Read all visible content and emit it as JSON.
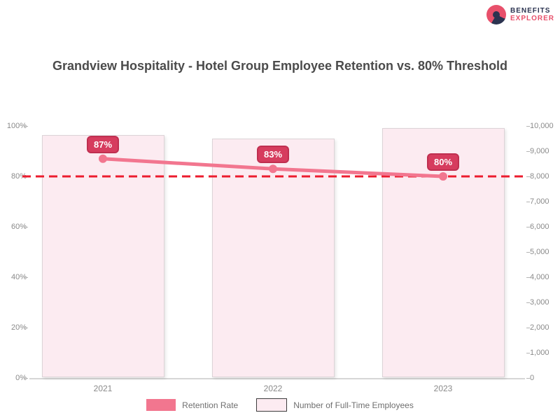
{
  "header": {
    "logo": {
      "line1": "BENEFITS",
      "line2": "EXPLORER"
    }
  },
  "title": "Grandview Hospitality - Hotel Group Employee Retention vs. 80% Threshold",
  "colors": {
    "line": "#f2768f",
    "marker": "#f2768f",
    "point_label_bg": "#d63c5e",
    "point_label_border": "#bf2f50",
    "bar_fill": "#fcebf1",
    "bar_border": "#dcd3d7",
    "threshold": "#ec1c2e",
    "logo_navy": "#2b3350",
    "logo_pink": "#e8506b",
    "axis_text": "#8a8a8a",
    "title_text": "#4b4b4b"
  },
  "chart_data": {
    "type": "bar",
    "subtype": "bar-line-combo",
    "title": "Grandview Hospitality - Hotel Group Employee Retention vs. 80% Threshold",
    "categories": [
      "2021",
      "2022",
      "2023"
    ],
    "series": [
      {
        "name": "Number of Full-Time Employees",
        "type": "bar",
        "axis": "right",
        "values": [
          9650,
          9500,
          9920
        ]
      },
      {
        "name": "Retention Rate",
        "type": "line",
        "axis": "left",
        "values": [
          87,
          83,
          80
        ],
        "point_labels": [
          "87%",
          "83%",
          "80%"
        ]
      }
    ],
    "threshold": {
      "value": 80,
      "style": "dashed",
      "color": "#ec1c2e"
    },
    "left_axis": {
      "ticks": [
        "100%",
        "80%",
        "60%",
        "40%",
        "20%",
        "0%"
      ],
      "range": [
        0,
        100
      ],
      "unit": "%"
    },
    "right_axis": {
      "ticks": [
        "10,000",
        "9,000",
        "8,000",
        "7,000",
        "6,000",
        "5,000",
        "4,000",
        "3,000",
        "2,000",
        "1,000",
        "0"
      ],
      "range": [
        0,
        10000
      ]
    },
    "legend": [
      {
        "label": "Retention Rate",
        "swatch": "line"
      },
      {
        "label": "Number of Full-Time Employees",
        "swatch": "bar"
      }
    ],
    "legend_position": "bottom",
    "grid": false,
    "xlabel": "",
    "ylabel": ""
  }
}
